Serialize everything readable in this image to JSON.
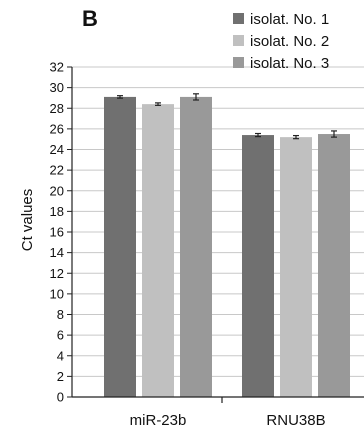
{
  "panel_label": "B",
  "chart_data": {
    "type": "bar",
    "title": "",
    "xlabel": "",
    "ylabel": "Ct values",
    "ylim": [
      0,
      32
    ],
    "yticks": [
      0,
      2,
      4,
      6,
      8,
      10,
      12,
      14,
      16,
      18,
      20,
      22,
      24,
      26,
      28,
      30,
      32
    ],
    "grid": true,
    "legend_position": "top-right",
    "categories": [
      "miR-23b",
      "RNU38B"
    ],
    "series": [
      {
        "name": "isolat. No. 1",
        "color": "#707070",
        "values": [
          29.1,
          25.4
        ],
        "errors": [
          0.12,
          0.15
        ]
      },
      {
        "name": "isolat. No. 2",
        "color": "#c0c0c0",
        "values": [
          28.4,
          25.2
        ],
        "errors": [
          0.12,
          0.15
        ]
      },
      {
        "name": "isolat. No. 3",
        "color": "#999999",
        "values": [
          29.1,
          25.5
        ],
        "errors": [
          0.3,
          0.3
        ]
      }
    ]
  }
}
